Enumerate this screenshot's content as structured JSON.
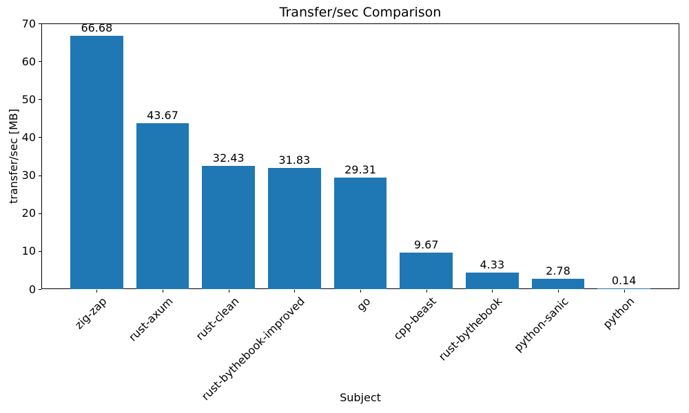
{
  "chart_data": {
    "type": "bar",
    "title": "Transfer/sec Comparison",
    "xlabel": "Subject",
    "ylabel": "transfer/sec [MB]",
    "categories": [
      "zig-zap",
      "rust-axum",
      "rust-clean",
      "rust-bythebook-improved",
      "go",
      "cpp-beast",
      "rust-bythebook",
      "python-sanic",
      "python"
    ],
    "values": [
      66.68,
      43.67,
      32.43,
      31.83,
      29.31,
      9.67,
      4.33,
      2.78,
      0.14
    ],
    "value_labels": [
      "66.68",
      "43.67",
      "32.43",
      "31.83",
      "29.31",
      "9.67",
      "4.33",
      "2.78",
      "0.14"
    ],
    "ylim": [
      0,
      70
    ],
    "yticks": [
      0,
      10,
      20,
      30,
      40,
      50,
      60,
      70
    ],
    "bar_color": "#1f77b4",
    "spine_color": "#000000",
    "text_color": "#000000",
    "background": "#ffffff",
    "grid": false,
    "legend": null,
    "bar_width_fraction": 0.8,
    "xtick_rotation_deg": 45
  }
}
